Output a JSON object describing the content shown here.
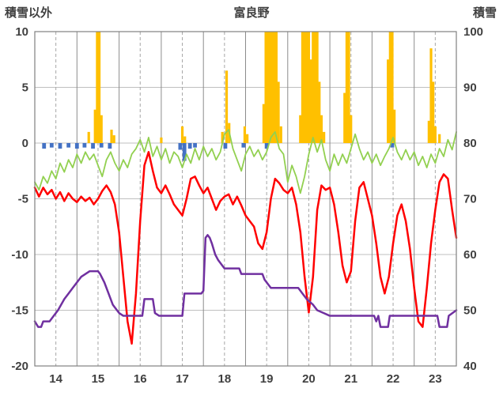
{
  "chart_data": {
    "type": "line",
    "title": "富良野",
    "x_range": [
      13.5,
      23.5
    ],
    "x_ticks": [
      14,
      15,
      16,
      17,
      18,
      19,
      20,
      21,
      22,
      23
    ],
    "left_axis": {
      "title": "積雪以外",
      "range": [
        -20,
        10
      ],
      "ticks": [
        10,
        5,
        0,
        -5,
        -10,
        -15,
        -20
      ]
    },
    "right_axis": {
      "title": "積雪",
      "range": [
        40,
        100
      ],
      "ticks": [
        100,
        90,
        80,
        70,
        60,
        50,
        40
      ]
    },
    "grid": {
      "h_color": "#BFBFBF",
      "v_solid_color": "#8C8C8C",
      "v_dashed_color": "#A6A6A6",
      "border_color": "#808080",
      "background": "#FFFFFF",
      "text_color": "#404040"
    },
    "series": [
      {
        "name": "green-line",
        "axis": "left",
        "color": "#92D050",
        "width": 1.8,
        "x0": 13.5,
        "dx": 0.1,
        "y": [
          -3.5,
          -4.2,
          -3.0,
          -3.6,
          -2.5,
          -3.2,
          -1.8,
          -2.6,
          -1.5,
          -2.2,
          -1.0,
          -1.8,
          -0.8,
          -1.5,
          -1.0,
          -2.0,
          -3.0,
          -1.5,
          -0.8,
          -1.8,
          -2.5,
          -1.5,
          -2.2,
          -1.0,
          -0.5,
          0.3,
          -0.8,
          0.5,
          -1.2,
          -0.3,
          -1.5,
          -0.5,
          -1.8,
          -0.8,
          -1.2,
          -2.2,
          -1.0,
          -1.8,
          -0.5,
          -1.5,
          -0.3,
          -1.2,
          -0.5,
          -1.5,
          -0.8,
          0.8,
          1.2,
          -0.5,
          -1.5,
          -2.5,
          -1.0,
          -0.3,
          -1.2,
          -0.6,
          -1.5,
          -0.8,
          0.5,
          1.0,
          -0.5,
          -1.0,
          -3.5,
          -2.0,
          -3.0,
          -4.5,
          -3.0,
          -1.0,
          0.5,
          -0.8,
          0.3,
          -1.5,
          -2.5,
          -1.0,
          -2.0,
          -1.0,
          -1.8,
          -0.5,
          0.8,
          -0.5,
          -1.5,
          -0.8,
          -1.8,
          -1.0,
          -2.0,
          -1.2,
          -0.5,
          0.5,
          -0.8,
          -1.5,
          -0.6,
          -1.5,
          -0.8,
          -2.0,
          -1.2,
          -2.2,
          -1.0,
          -1.8,
          -0.5,
          -1.2,
          0.3,
          -0.6,
          1.0
        ]
      },
      {
        "name": "red-line",
        "axis": "left",
        "color": "#FF0000",
        "width": 2.5,
        "x0": 13.5,
        "dx": 0.1,
        "y": [
          -4.0,
          -4.8,
          -4.0,
          -4.6,
          -4.2,
          -5.0,
          -4.4,
          -5.2,
          -4.5,
          -5.0,
          -5.3,
          -4.8,
          -5.2,
          -4.9,
          -5.5,
          -5.0,
          -4.3,
          -3.8,
          -4.4,
          -5.5,
          -8.0,
          -12.0,
          -16.0,
          -18.0,
          -13.5,
          -7.0,
          -2.0,
          -0.8,
          -2.5,
          -4.0,
          -4.5,
          -3.8,
          -4.6,
          -5.5,
          -6.0,
          -6.5,
          -5.0,
          -3.2,
          -3.0,
          -3.8,
          -4.5,
          -4.0,
          -5.0,
          -6.0,
          -5.2,
          -4.8,
          -4.6,
          -5.5,
          -4.8,
          -5.6,
          -6.5,
          -7.0,
          -7.5,
          -9.0,
          -9.5,
          -8.0,
          -5.0,
          -3.2,
          -3.6,
          -4.2,
          -4.5,
          -4.0,
          -5.5,
          -8.0,
          -12.0,
          -15.2,
          -12.0,
          -6.0,
          -3.8,
          -4.2,
          -4.0,
          -5.5,
          -8.0,
          -11.0,
          -12.5,
          -11.5,
          -7.0,
          -4.0,
          -3.5,
          -5.0,
          -6.5,
          -9.0,
          -12.0,
          -13.5,
          -12.0,
          -9.0,
          -6.5,
          -5.5,
          -7.0,
          -9.5,
          -13.0,
          -16.0,
          -16.5,
          -13.0,
          -9.0,
          -6.0,
          -3.5,
          -2.8,
          -3.2,
          -6.0,
          -8.5
        ]
      },
      {
        "name": "purple-line",
        "axis": "right",
        "color": "#7030A0",
        "width": 2.5,
        "x": [
          13.5,
          13.58,
          13.65,
          13.7,
          13.85,
          13.95,
          14.05,
          14.2,
          14.3,
          14.4,
          14.5,
          14.6,
          14.7,
          14.8,
          15.0,
          15.05,
          15.15,
          15.25,
          15.35,
          15.45,
          15.5,
          15.6,
          16.05,
          16.1,
          16.3,
          16.35,
          16.45,
          17.0,
          17.05,
          17.45,
          17.5,
          17.55,
          17.6,
          17.65,
          17.7,
          17.78,
          17.85,
          17.95,
          18.0,
          18.35,
          18.4,
          18.9,
          18.95,
          19.05,
          19.1,
          19.75,
          19.85,
          19.95,
          20.1,
          20.2,
          20.35,
          20.5,
          21.55,
          21.6,
          21.65,
          21.7,
          21.88,
          21.92,
          23.05,
          23.1,
          23.28,
          23.32,
          23.5
        ],
        "y": [
          48,
          47,
          47,
          48,
          48,
          49,
          50,
          52,
          53,
          54,
          55,
          56,
          56.5,
          57,
          57,
          56.5,
          55,
          53,
          51,
          50,
          49.5,
          49,
          49,
          52,
          52,
          49.5,
          49,
          49,
          53,
          53,
          53.5,
          63,
          63.5,
          63,
          62,
          60,
          59,
          58,
          57.5,
          57.5,
          56.5,
          56.5,
          55.5,
          54.5,
          54,
          54,
          53,
          52,
          51,
          50,
          49.5,
          49,
          49,
          48,
          49,
          47,
          47,
          49,
          49,
          47,
          47,
          49,
          50
        ]
      }
    ],
    "bars": [
      {
        "name": "orange-bars",
        "axis": "left",
        "color": "#FFC000",
        "width_days": 0.06,
        "points": [
          [
            14.78,
            1.0
          ],
          [
            14.93,
            3.0
          ],
          [
            14.98,
            10
          ],
          [
            15.03,
            10
          ],
          [
            15.08,
            2.5
          ],
          [
            15.32,
            1.2
          ],
          [
            15.38,
            0.7
          ],
          [
            16.5,
            0.5
          ],
          [
            17.0,
            1.5
          ],
          [
            17.06,
            0.6
          ],
          [
            17.95,
            1.0
          ],
          [
            18.05,
            6.5
          ],
          [
            18.11,
            1.8
          ],
          [
            18.48,
            1.5
          ],
          [
            18.54,
            0.8
          ],
          [
            18.93,
            3.5
          ],
          [
            18.98,
            10
          ],
          [
            19.03,
            10
          ],
          [
            19.08,
            10
          ],
          [
            19.13,
            10
          ],
          [
            19.18,
            10
          ],
          [
            19.23,
            10
          ],
          [
            19.28,
            5.5
          ],
          [
            19.34,
            1.5
          ],
          [
            19.8,
            2.5
          ],
          [
            19.85,
            10
          ],
          [
            19.9,
            10
          ],
          [
            19.95,
            10
          ],
          [
            20.0,
            10
          ],
          [
            20.05,
            7.5
          ],
          [
            20.1,
            10
          ],
          [
            20.15,
            10
          ],
          [
            20.2,
            10
          ],
          [
            20.25,
            5.5
          ],
          [
            20.3,
            2.5
          ],
          [
            20.36,
            1.0
          ],
          [
            20.85,
            4.5
          ],
          [
            20.9,
            10
          ],
          [
            20.95,
            10
          ],
          [
            21.0,
            2.5
          ],
          [
            21.88,
            7.5
          ],
          [
            21.93,
            10
          ],
          [
            21.98,
            10
          ],
          [
            22.03,
            3.0
          ],
          [
            22.85,
            2.0
          ],
          [
            22.9,
            8.5
          ],
          [
            22.95,
            5.5
          ],
          [
            23.0,
            1.5
          ],
          [
            23.1,
            0.8
          ]
        ]
      },
      {
        "name": "blue-marks",
        "axis": "left",
        "color": "#4472C4",
        "width_days": 0.09,
        "points": [
          [
            13.72,
            -0.5
          ],
          [
            13.9,
            -0.4
          ],
          [
            14.1,
            -0.5
          ],
          [
            14.3,
            -0.4
          ],
          [
            14.5,
            -0.5
          ],
          [
            14.68,
            -0.4
          ],
          [
            14.88,
            -0.5
          ],
          [
            15.08,
            -0.4
          ],
          [
            15.28,
            -0.5
          ],
          [
            16.95,
            -0.6
          ],
          [
            17.05,
            -1.6
          ],
          [
            17.18,
            -0.5
          ],
          [
            17.3,
            -0.4
          ],
          [
            18.02,
            -0.5
          ],
          [
            18.45,
            -0.4
          ],
          [
            19.0,
            -0.5
          ],
          [
            21.98,
            -0.4
          ]
        ]
      }
    ]
  }
}
